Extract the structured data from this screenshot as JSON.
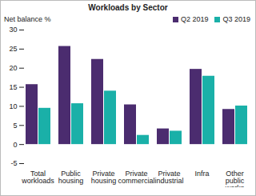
{
  "chart_data": {
    "type": "bar",
    "title": "Workloads by Sector",
    "y_label": "Net balance %",
    "categories": [
      "Total workloads",
      "Public housing",
      "Private housing",
      "Private commercial",
      "Private industrial",
      "Infra",
      "Other public works"
    ],
    "series": [
      {
        "name": "Q2 2019",
        "color": "#4b2c6f",
        "values": [
          15.7,
          25.7,
          22.3,
          10.4,
          4.1,
          19.7,
          9.2
        ]
      },
      {
        "name": "Q3 2019",
        "color": "#1ab0a8",
        "values": [
          9.5,
          10.7,
          14.0,
          2.4,
          3.5,
          17.9,
          10.1
        ]
      }
    ],
    "ylim": [
      -5,
      30
    ],
    "yticks": [
      -5,
      0,
      5,
      10,
      15,
      20,
      25,
      30
    ],
    "grid": false,
    "legend": "top-right"
  }
}
